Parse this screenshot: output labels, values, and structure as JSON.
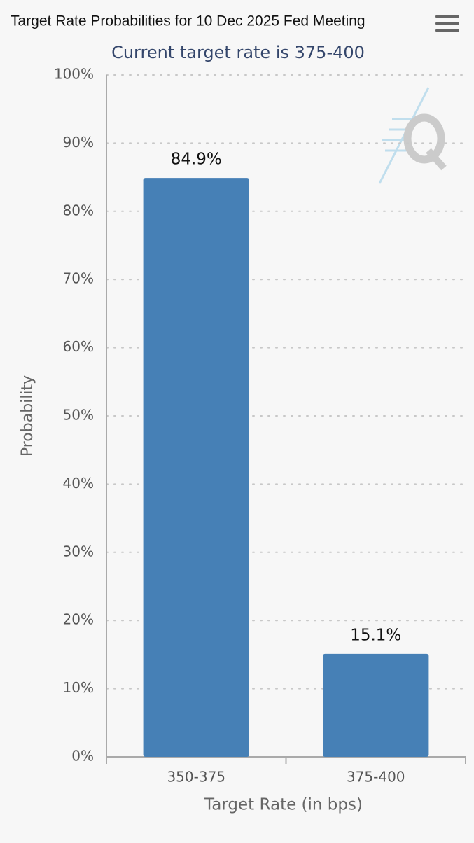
{
  "chart_data": {
    "type": "bar",
    "title": "Target Rate Probabilities for 10 Dec 2025 Fed Meeting",
    "subtitle": "Current target rate is 375-400",
    "x_label": "Target Rate (in bps)",
    "y_label": "Probability",
    "categories": [
      "350-375",
      "375-400"
    ],
    "values": [
      84.9,
      15.1
    ],
    "value_labels": [
      "84.9%",
      "15.1%"
    ],
    "color": "#4680b6",
    "ylim": [
      0,
      100
    ],
    "yticks": [
      {
        "value": 0,
        "label": "0%"
      },
      {
        "value": 10,
        "label": "10%"
      },
      {
        "value": 20,
        "label": "20%"
      },
      {
        "value": 30,
        "label": "30%"
      },
      {
        "value": 40,
        "label": "40%"
      },
      {
        "value": 50,
        "label": "50%"
      },
      {
        "value": 60,
        "label": "60%"
      },
      {
        "value": 70,
        "label": "70%"
      },
      {
        "value": 80,
        "label": "80%"
      },
      {
        "value": 90,
        "label": "90%"
      },
      {
        "value": 100,
        "label": "100%"
      }
    ],
    "grid": true
  }
}
